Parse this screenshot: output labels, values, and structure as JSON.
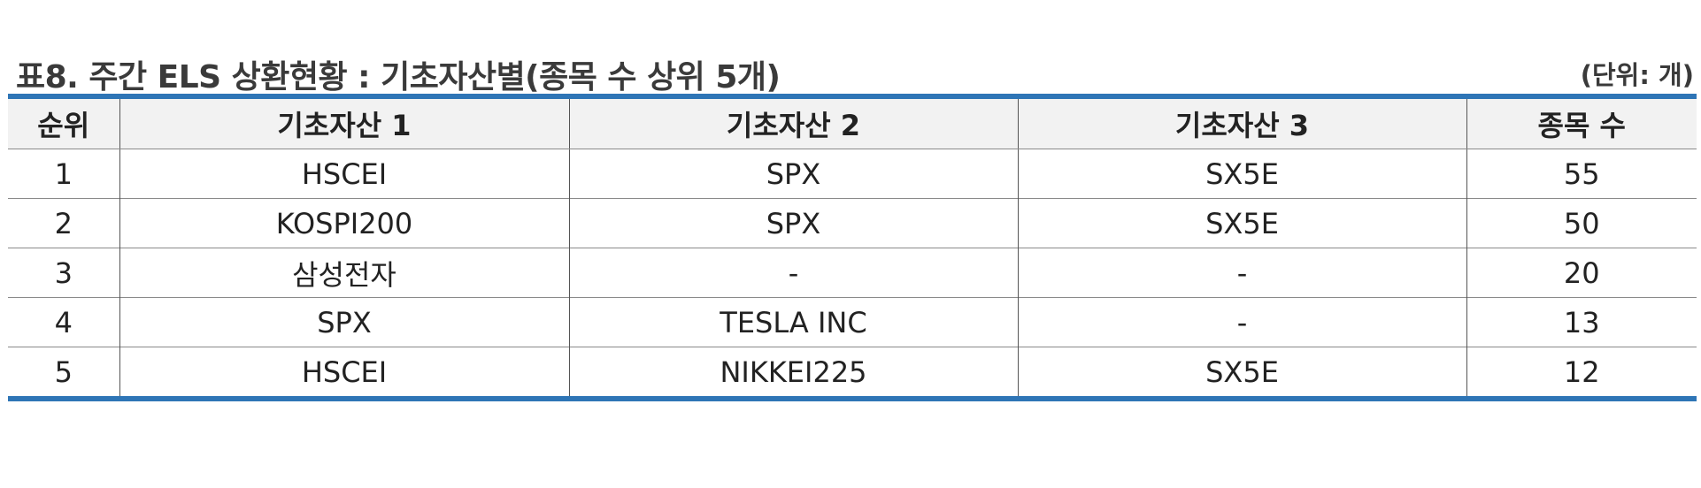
{
  "title": "표8. 주간 ELS 상환현황 : 기초자산별(종목 수 상위 5개)",
  "unit": "(단위: 개)",
  "table": {
    "headers": [
      "순위",
      "기초자산 1",
      "기초자산 2",
      "기초자산 3",
      "종목 수"
    ],
    "rows": [
      [
        "1",
        "HSCEI",
        "SPX",
        "SX5E",
        "55"
      ],
      [
        "2",
        "KOSPI200",
        "SPX",
        "SX5E",
        "50"
      ],
      [
        "3",
        "삼성전자",
        "-",
        "-",
        "20"
      ],
      [
        "4",
        "SPX",
        "TESLA INC",
        "-",
        "13"
      ],
      [
        "5",
        "HSCEI",
        "NIKKEI225",
        "SX5E",
        "12"
      ]
    ]
  },
  "colors": {
    "accent_rule": "#2e75b6",
    "header_bg": "#f2f2f2"
  }
}
